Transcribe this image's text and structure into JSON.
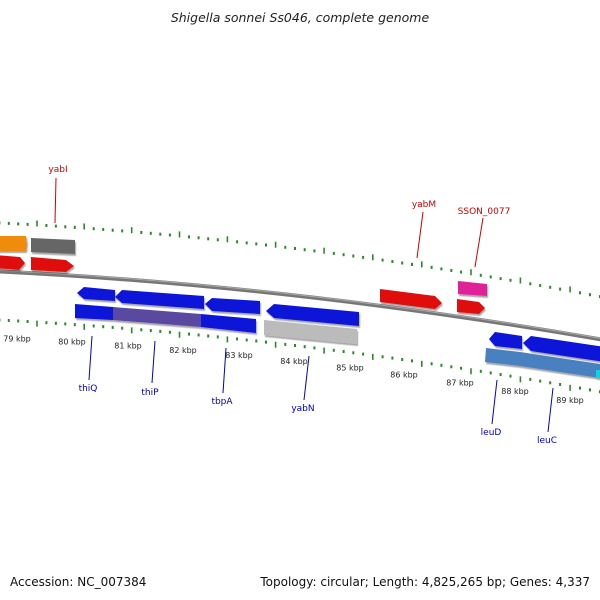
{
  "title": "Shigella sonnei Ss046, complete genome",
  "footer": {
    "accession": "Accession: NC_007384",
    "summary": "Topology: circular; Length: 4,825,265 bp; Genes: 4,337"
  },
  "colors": {
    "forward_label": "#cc0000",
    "reverse_label": "#0000bb",
    "tick": "#2a8a2a",
    "backbone": "#777777",
    "red_gene": "#e01010",
    "blue_gene": "#0a14d8",
    "gray_gene": "#bbbbbb",
    "dark_gray_gene": "#666666",
    "orange_gene": "#f08c10",
    "pink_gene": "#e0209a",
    "steel_gene": "#4a80bf",
    "purple_gene": "#5a4aa0",
    "cyan_gene": "#00d8e8"
  },
  "scale_labels": [
    "79 kbp",
    "80 kbp",
    "81 kbp",
    "82 kbp",
    "83 kbp",
    "84 kbp",
    "85 kbp",
    "86 kbp",
    "87 kbp",
    "88 kbp",
    "89 kbp"
  ],
  "forward_labels": [
    "yabI",
    "yabM",
    "SSON_0077"
  ],
  "reverse_labels": [
    "thiQ",
    "thiP",
    "tbpA",
    "yabN",
    "leuD",
    "leuC"
  ]
}
